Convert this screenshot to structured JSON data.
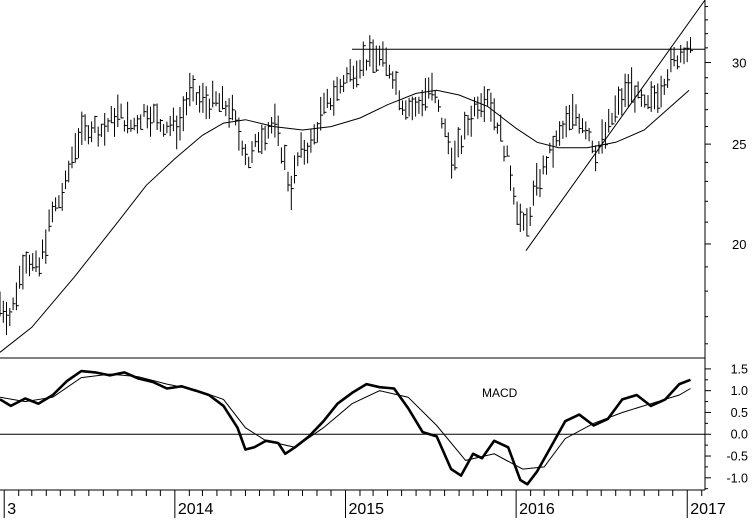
{
  "chart_data": [
    {
      "type": "ohlc",
      "title": "",
      "xlabel": "",
      "ylabel": "",
      "y_scale": "log",
      "ylim": [
        15.5,
        34.5
      ],
      "y_ticks": [
        20,
        25,
        30
      ],
      "x_ticks": [
        "3",
        "2014",
        "2015",
        "2016",
        "2017"
      ],
      "x_tick_dates": [
        "2013-01-01",
        "2014-01-01",
        "2015-01-01",
        "2016-01-01",
        "2017-01-01"
      ],
      "xlim": [
        "2012-12-23",
        "2017-02-08"
      ],
      "grid": false,
      "series": [
        {
          "kind": "weekly_bars",
          "anchors": [
            [
              "2012-12-23",
              17.5
            ],
            [
              "2013-01-15",
              17.0
            ],
            [
              "2013-02-15",
              19.5
            ],
            [
              "2013-03-15",
              18.8
            ],
            [
              "2013-04-15",
              21.5
            ],
            [
              "2013-05-10",
              22.5
            ],
            [
              "2013-06-01",
              25.0
            ],
            [
              "2013-07-01",
              26.0
            ],
            [
              "2013-08-01",
              25.8
            ],
            [
              "2013-09-01",
              26.8
            ],
            [
              "2013-10-01",
              26.0
            ],
            [
              "2013-11-01",
              27.0
            ],
            [
              "2013-12-01",
              26.2
            ],
            [
              "2014-01-10",
              26.0
            ],
            [
              "2014-02-01",
              28.0
            ],
            [
              "2014-03-01",
              27.5
            ],
            [
              "2014-04-01",
              27.5
            ],
            [
              "2014-05-01",
              27.0
            ],
            [
              "2014-05-20",
              25.5
            ],
            [
              "2014-06-10",
              24.0
            ],
            [
              "2014-07-01",
              25.5
            ],
            [
              "2014-08-01",
              26.2
            ],
            [
              "2014-08-25",
              24.0
            ],
            [
              "2014-09-05",
              22.5
            ],
            [
              "2014-09-25",
              24.5
            ],
            [
              "2014-10-20",
              25.0
            ],
            [
              "2014-11-15",
              27.0
            ],
            [
              "2014-12-10",
              28.0
            ],
            [
              "2015-01-01",
              29.0
            ],
            [
              "2015-02-01",
              30.0
            ],
            [
              "2015-03-10",
              30.5
            ],
            [
              "2015-04-10",
              29.5
            ],
            [
              "2015-05-01",
              27.5
            ],
            [
              "2015-06-01",
              27.0
            ],
            [
              "2015-07-01",
              28.5
            ],
            [
              "2015-07-25",
              26.5
            ],
            [
              "2015-08-20",
              24.0
            ],
            [
              "2015-09-10",
              25.5
            ],
            [
              "2015-10-10",
              27.5
            ],
            [
              "2015-11-01",
              28.0
            ],
            [
              "2015-11-25",
              26.0
            ],
            [
              "2015-12-15",
              24.0
            ],
            [
              "2016-01-05",
              21.5
            ],
            [
              "2016-01-20",
              20.5
            ],
            [
              "2016-02-10",
              22.5
            ],
            [
              "2016-03-05",
              24.0
            ],
            [
              "2016-03-25",
              25.0
            ],
            [
              "2016-04-15",
              26.0
            ],
            [
              "2016-05-05",
              26.8
            ],
            [
              "2016-06-01",
              26.0
            ],
            [
              "2016-06-20",
              24.5
            ],
            [
              "2016-07-10",
              25.5
            ],
            [
              "2016-08-01",
              27.0
            ],
            [
              "2016-09-01",
              28.5
            ],
            [
              "2016-10-05",
              27.0
            ],
            [
              "2016-11-01",
              28.2
            ],
            [
              "2016-12-01",
              30.0
            ],
            [
              "2016-12-25",
              31.0
            ],
            [
              "2017-01-08",
              30.8
            ]
          ]
        },
        {
          "kind": "moving_average",
          "points": [
            [
              "2012-12-23",
              15.7
            ],
            [
              "2013-03-01",
              16.6
            ],
            [
              "2013-06-01",
              18.6
            ],
            [
              "2013-09-01",
              21.0
            ],
            [
              "2013-11-01",
              22.8
            ],
            [
              "2014-01-01",
              24.2
            ],
            [
              "2014-03-01",
              25.5
            ],
            [
              "2014-04-15",
              26.2
            ],
            [
              "2014-06-01",
              26.4
            ],
            [
              "2014-08-01",
              26.0
            ],
            [
              "2014-10-01",
              25.8
            ],
            [
              "2014-12-01",
              26.0
            ],
            [
              "2015-02-01",
              26.5
            ],
            [
              "2015-04-01",
              27.3
            ],
            [
              "2015-06-01",
              28.0
            ],
            [
              "2015-07-15",
              28.2
            ],
            [
              "2015-09-01",
              27.9
            ],
            [
              "2015-11-01",
              27.2
            ],
            [
              "2016-01-01",
              25.9
            ],
            [
              "2016-02-15",
              25.1
            ],
            [
              "2016-04-01",
              24.8
            ],
            [
              "2016-06-01",
              24.8
            ],
            [
              "2016-08-01",
              25.1
            ],
            [
              "2016-10-01",
              25.8
            ],
            [
              "2016-12-01",
              27.3
            ],
            [
              "2017-01-05",
              28.2
            ]
          ]
        },
        {
          "kind": "resistance_line",
          "points": [
            [
              "2015-01-15",
              30.9
            ],
            [
              "2017-02-08",
              30.9
            ]
          ]
        },
        {
          "kind": "trend_line",
          "points": [
            [
              "2016-01-22",
              19.7
            ],
            [
              "2017-02-08",
              34.5
            ]
          ]
        }
      ]
    },
    {
      "type": "line",
      "title": "MACD",
      "xlabel": "",
      "ylabel": "",
      "ylim": [
        -1.28,
        1.75
      ],
      "y_ticks": [
        1.5,
        1.0,
        0.5,
        0.0,
        -0.5,
        -1.0
      ],
      "y_tick_labels": [
        "1.5",
        "1.0",
        "0.5",
        "0.0",
        "-0.5",
        "-1.0"
      ],
      "zero_line": true,
      "series": [
        {
          "kind": "macd",
          "points": [
            [
              "2012-12-23",
              0.8
            ],
            [
              "2013-01-15",
              0.65
            ],
            [
              "2013-02-15",
              0.82
            ],
            [
              "2013-03-15",
              0.7
            ],
            [
              "2013-04-15",
              0.9
            ],
            [
              "2013-05-15",
              1.22
            ],
            [
              "2013-06-15",
              1.45
            ],
            [
              "2013-07-15",
              1.42
            ],
            [
              "2013-08-15",
              1.35
            ],
            [
              "2013-09-15",
              1.42
            ],
            [
              "2013-10-15",
              1.28
            ],
            [
              "2013-11-15",
              1.2
            ],
            [
              "2013-12-15",
              1.05
            ],
            [
              "2014-01-15",
              1.1
            ],
            [
              "2014-02-15",
              1.0
            ],
            [
              "2014-03-15",
              0.9
            ],
            [
              "2014-04-15",
              0.65
            ],
            [
              "2014-05-15",
              0.15
            ],
            [
              "2014-06-01",
              -0.35
            ],
            [
              "2014-06-20",
              -0.3
            ],
            [
              "2014-07-15",
              -0.15
            ],
            [
              "2014-08-10",
              -0.2
            ],
            [
              "2014-08-25",
              -0.45
            ],
            [
              "2014-09-15",
              -0.3
            ],
            [
              "2014-10-15",
              -0.05
            ],
            [
              "2014-11-15",
              0.3
            ],
            [
              "2014-12-15",
              0.7
            ],
            [
              "2015-01-15",
              0.95
            ],
            [
              "2015-02-15",
              1.15
            ],
            [
              "2015-03-15",
              1.08
            ],
            [
              "2015-04-15",
              1.05
            ],
            [
              "2015-05-15",
              0.6
            ],
            [
              "2015-06-15",
              0.05
            ],
            [
              "2015-07-15",
              -0.05
            ],
            [
              "2015-08-15",
              -0.8
            ],
            [
              "2015-09-05",
              -0.95
            ],
            [
              "2015-10-01",
              -0.45
            ],
            [
              "2015-10-20",
              -0.55
            ],
            [
              "2015-11-15",
              -0.15
            ],
            [
              "2015-12-15",
              -0.3
            ],
            [
              "2016-01-10",
              -1.05
            ],
            [
              "2016-01-25",
              -1.15
            ],
            [
              "2016-02-15",
              -0.85
            ],
            [
              "2016-03-15",
              -0.3
            ],
            [
              "2016-04-15",
              0.3
            ],
            [
              "2016-05-15",
              0.45
            ],
            [
              "2016-06-15",
              0.2
            ],
            [
              "2016-07-15",
              0.35
            ],
            [
              "2016-08-15",
              0.8
            ],
            [
              "2016-09-15",
              0.9
            ],
            [
              "2016-10-15",
              0.65
            ],
            [
              "2016-11-15",
              0.8
            ],
            [
              "2016-12-15",
              1.15
            ],
            [
              "2017-01-08",
              1.25
            ]
          ]
        },
        {
          "kind": "signal",
          "points": [
            [
              "2012-12-23",
              0.85
            ],
            [
              "2013-02-15",
              0.75
            ],
            [
              "2013-04-15",
              0.85
            ],
            [
              "2013-06-15",
              1.3
            ],
            [
              "2013-08-15",
              1.38
            ],
            [
              "2013-10-15",
              1.32
            ],
            [
              "2013-12-15",
              1.15
            ],
            [
              "2014-02-15",
              1.02
            ],
            [
              "2014-04-15",
              0.8
            ],
            [
              "2014-06-01",
              0.15
            ],
            [
              "2014-07-15",
              -0.15
            ],
            [
              "2014-09-15",
              -0.3
            ],
            [
              "2014-11-15",
              0.15
            ],
            [
              "2015-01-15",
              0.7
            ],
            [
              "2015-03-15",
              1.0
            ],
            [
              "2015-05-15",
              0.85
            ],
            [
              "2015-07-15",
              0.2
            ],
            [
              "2015-09-15",
              -0.6
            ],
            [
              "2015-11-15",
              -0.45
            ],
            [
              "2016-01-15",
              -0.8
            ],
            [
              "2016-03-01",
              -0.75
            ],
            [
              "2016-04-15",
              -0.1
            ],
            [
              "2016-06-15",
              0.25
            ],
            [
              "2016-08-15",
              0.5
            ],
            [
              "2016-10-15",
              0.7
            ],
            [
              "2016-12-15",
              0.9
            ],
            [
              "2017-01-08",
              1.05
            ]
          ]
        }
      ]
    }
  ]
}
